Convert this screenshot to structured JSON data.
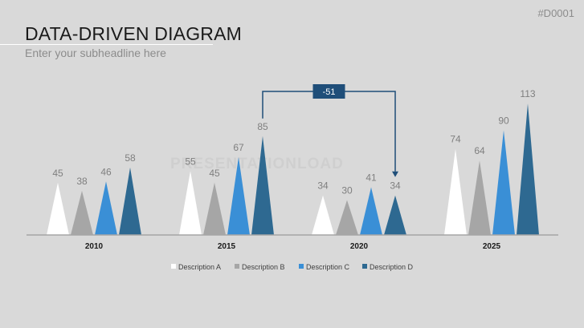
{
  "header": {
    "slide_id": "#D0001",
    "title": "DATA-DRIVEN DIAGRAM",
    "subtitle": "Enter your subheadline here"
  },
  "watermark": "PRESENTATIONLOAD",
  "colors": {
    "background": "#d9d9d9",
    "axis": "#a6a6a6",
    "series": [
      "#ffffff",
      "#a6a6a6",
      "#3a8fd6",
      "#2e6991"
    ],
    "callout": "#1f4e79"
  },
  "chart_data": {
    "type": "bar",
    "shape": "triangle",
    "categories": [
      "2010",
      "2015",
      "2020",
      "2025"
    ],
    "series": [
      {
        "name": "Description A",
        "values": [
          45,
          55,
          34,
          74
        ]
      },
      {
        "name": "Description B",
        "values": [
          38,
          45,
          30,
          64
        ]
      },
      {
        "name": "Description C",
        "values": [
          46,
          67,
          41,
          90
        ]
      },
      {
        "name": "Description D",
        "values": [
          58,
          85,
          34,
          113
        ]
      }
    ],
    "data_labels": true,
    "legend_position": "bottom",
    "grid": false,
    "annotation": {
      "label": "-51",
      "from": {
        "category": "2015",
        "series": "Description D"
      },
      "to": {
        "category": "2020",
        "series": "Description D"
      }
    }
  }
}
